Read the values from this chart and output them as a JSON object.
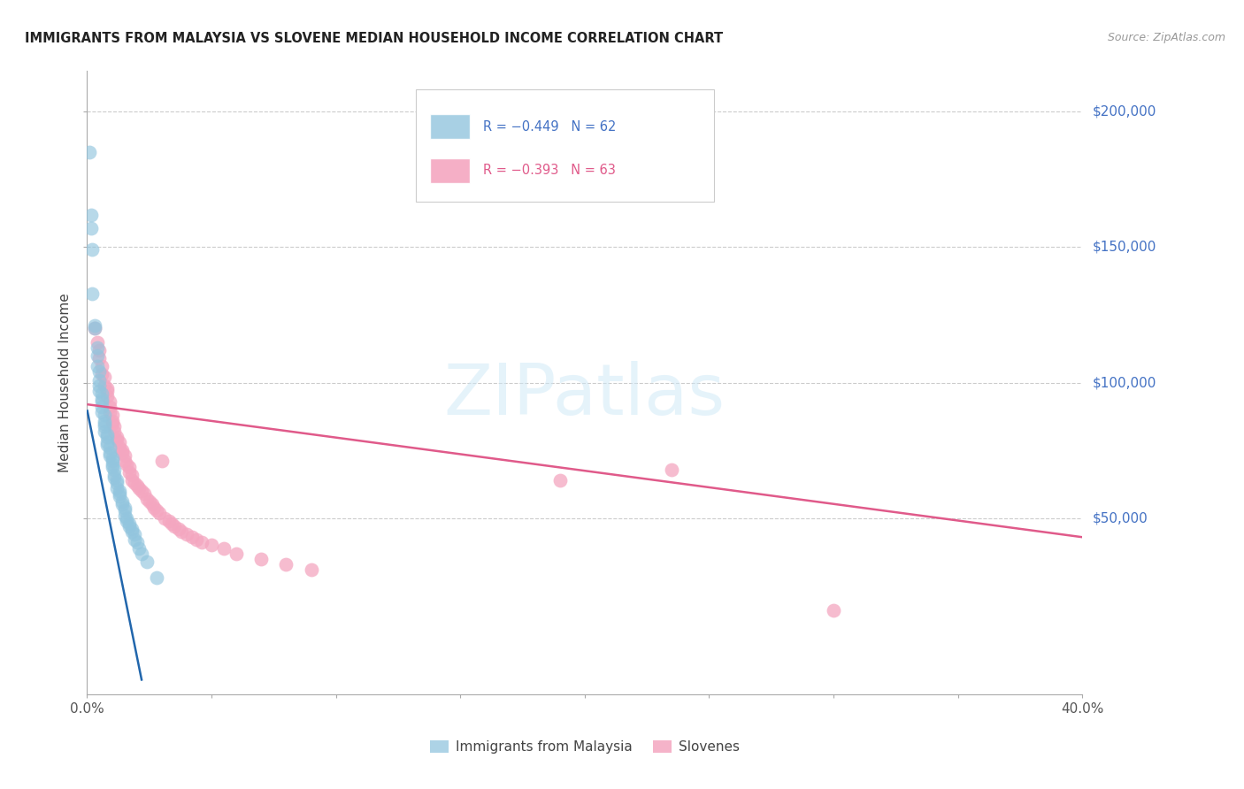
{
  "title": "IMMIGRANTS FROM MALAYSIA VS SLOVENE MEDIAN HOUSEHOLD INCOME CORRELATION CHART",
  "source": "Source: ZipAtlas.com",
  "ylabel": "Median Household Income",
  "xmin": 0.0,
  "xmax": 0.4,
  "ymin": -15000,
  "ymax": 215000,
  "legend_r1": "R = −0.449   N = 62",
  "legend_r2": "R = −0.393   N = 63",
  "legend_label1": "Immigrants from Malaysia",
  "legend_label2": "Slovenes",
  "blue_color": "#92c5de",
  "pink_color": "#f4a6c0",
  "line_blue": "#2166ac",
  "line_pink": "#e05a8a",
  "blue_scatter_x": [
    0.001,
    0.0015,
    0.0018,
    0.002,
    0.002,
    0.003,
    0.003,
    0.004,
    0.004,
    0.004,
    0.005,
    0.005,
    0.005,
    0.005,
    0.006,
    0.006,
    0.006,
    0.006,
    0.006,
    0.007,
    0.007,
    0.007,
    0.007,
    0.007,
    0.008,
    0.008,
    0.008,
    0.008,
    0.009,
    0.009,
    0.009,
    0.01,
    0.01,
    0.01,
    0.01,
    0.011,
    0.011,
    0.011,
    0.012,
    0.012,
    0.012,
    0.013,
    0.013,
    0.013,
    0.014,
    0.014,
    0.015,
    0.015,
    0.015,
    0.016,
    0.016,
    0.017,
    0.017,
    0.018,
    0.018,
    0.019,
    0.019,
    0.02,
    0.021,
    0.022,
    0.024,
    0.028
  ],
  "blue_scatter_y": [
    185000,
    162000,
    157000,
    149000,
    133000,
    121000,
    120000,
    113000,
    110000,
    106000,
    104000,
    101000,
    99000,
    97000,
    96000,
    94000,
    93000,
    91000,
    89000,
    88000,
    86000,
    85000,
    84000,
    82000,
    81000,
    80000,
    78000,
    77000,
    76000,
    74000,
    73000,
    72000,
    71000,
    70000,
    69000,
    68000,
    66000,
    65000,
    64000,
    63000,
    61000,
    60000,
    59000,
    58000,
    56000,
    55000,
    54000,
    53000,
    51000,
    50000,
    49000,
    48000,
    47000,
    46000,
    45000,
    44000,
    42000,
    41000,
    39000,
    37000,
    34000,
    28000
  ],
  "pink_scatter_x": [
    0.003,
    0.004,
    0.005,
    0.005,
    0.006,
    0.006,
    0.007,
    0.007,
    0.008,
    0.008,
    0.008,
    0.009,
    0.009,
    0.009,
    0.01,
    0.01,
    0.01,
    0.011,
    0.011,
    0.012,
    0.012,
    0.013,
    0.013,
    0.014,
    0.014,
    0.015,
    0.015,
    0.016,
    0.017,
    0.017,
    0.018,
    0.018,
    0.019,
    0.02,
    0.021,
    0.022,
    0.023,
    0.024,
    0.025,
    0.026,
    0.027,
    0.028,
    0.029,
    0.03,
    0.031,
    0.033,
    0.034,
    0.035,
    0.037,
    0.038,
    0.04,
    0.042,
    0.044,
    0.046,
    0.05,
    0.055,
    0.06,
    0.07,
    0.08,
    0.09,
    0.19,
    0.235,
    0.3
  ],
  "pink_scatter_y": [
    120000,
    115000,
    112000,
    109000,
    106000,
    103000,
    102000,
    99000,
    98000,
    97000,
    95000,
    93000,
    91000,
    89000,
    88000,
    86000,
    85000,
    84000,
    82000,
    80000,
    79000,
    78000,
    76000,
    75000,
    74000,
    73000,
    71000,
    70000,
    69000,
    67000,
    66000,
    64000,
    63000,
    62000,
    61000,
    60000,
    59000,
    57000,
    56000,
    55000,
    54000,
    53000,
    52000,
    71000,
    50000,
    49000,
    48000,
    47000,
    46000,
    45000,
    44000,
    43000,
    42000,
    41000,
    40000,
    39000,
    37000,
    35000,
    33000,
    31000,
    64000,
    68000,
    16000
  ],
  "blue_line_x": [
    0.0,
    0.022
  ],
  "blue_line_y": [
    90000,
    -10000
  ],
  "pink_line_x": [
    0.0,
    0.4
  ],
  "pink_line_y": [
    92000,
    43000
  ],
  "ytick_vals": [
    50000,
    100000,
    150000,
    200000
  ],
  "ytick_labels": [
    "$50,000",
    "$100,000",
    "$150,000",
    "$200,000"
  ]
}
